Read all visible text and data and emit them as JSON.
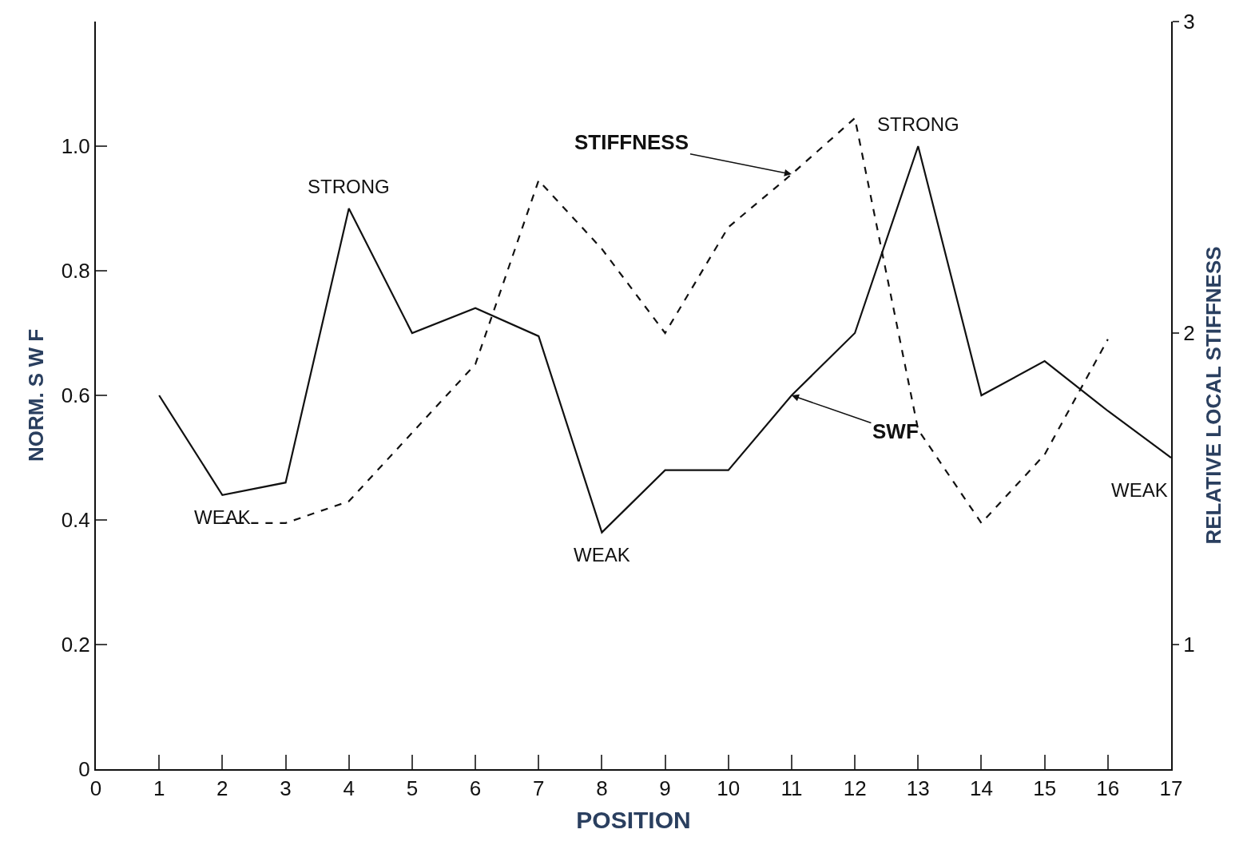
{
  "chart_data": {
    "type": "line",
    "xlabel": "POSITION",
    "ylabel": "NORM. S W F",
    "y2label": "RELATIVE LOCAL STIFFNESS",
    "x": [
      1,
      2,
      3,
      4,
      5,
      6,
      7,
      8,
      9,
      10,
      11,
      12,
      13,
      14,
      15,
      16,
      17
    ],
    "series": [
      {
        "name": "SWF",
        "color": "#111111",
        "line_style": "solid",
        "values": [
          0.6,
          0.44,
          0.46,
          0.9,
          0.7,
          0.74,
          0.695,
          0.38,
          0.48,
          0.48,
          0.6,
          0.7,
          1.0,
          0.6,
          0.655,
          0.575,
          0.5
        ]
      },
      {
        "name": "STIFFNESS",
        "color": "#111111",
        "line_style": "dashed",
        "axis": "y2",
        "values": [
          null,
          1.39,
          1.39,
          1.46,
          1.68,
          1.9,
          2.49,
          2.27,
          2.0,
          2.34,
          2.51,
          2.69,
          1.69,
          1.39,
          1.61,
          1.98,
          null
        ]
      }
    ],
    "xlim": [
      0,
      17
    ],
    "xticks": [
      0,
      1,
      2,
      3,
      4,
      5,
      6,
      7,
      8,
      9,
      10,
      11,
      12,
      13,
      14,
      15,
      16,
      17
    ],
    "ylim": [
      0,
      1.2
    ],
    "yticks": [
      0,
      0.2,
      0.4,
      0.6,
      0.8,
      {
        "value": 1.0,
        "label": "1.0"
      }
    ],
    "y2lim": [
      0.6,
      3
    ],
    "y2ticks": [
      1,
      2,
      3
    ],
    "annotations": [
      {
        "text": "STRONG",
        "x": 4,
        "y": 0.9
      },
      {
        "text": "WEAK",
        "x": 2,
        "y": 0.44
      },
      {
        "text": "WEAK",
        "x": 8,
        "y": 0.38
      },
      {
        "text": "STRONG",
        "x": 13,
        "y": 1.0
      },
      {
        "text": "WEAK",
        "x": 17,
        "y": 0.5
      }
    ],
    "legend": false,
    "marker": "none"
  }
}
